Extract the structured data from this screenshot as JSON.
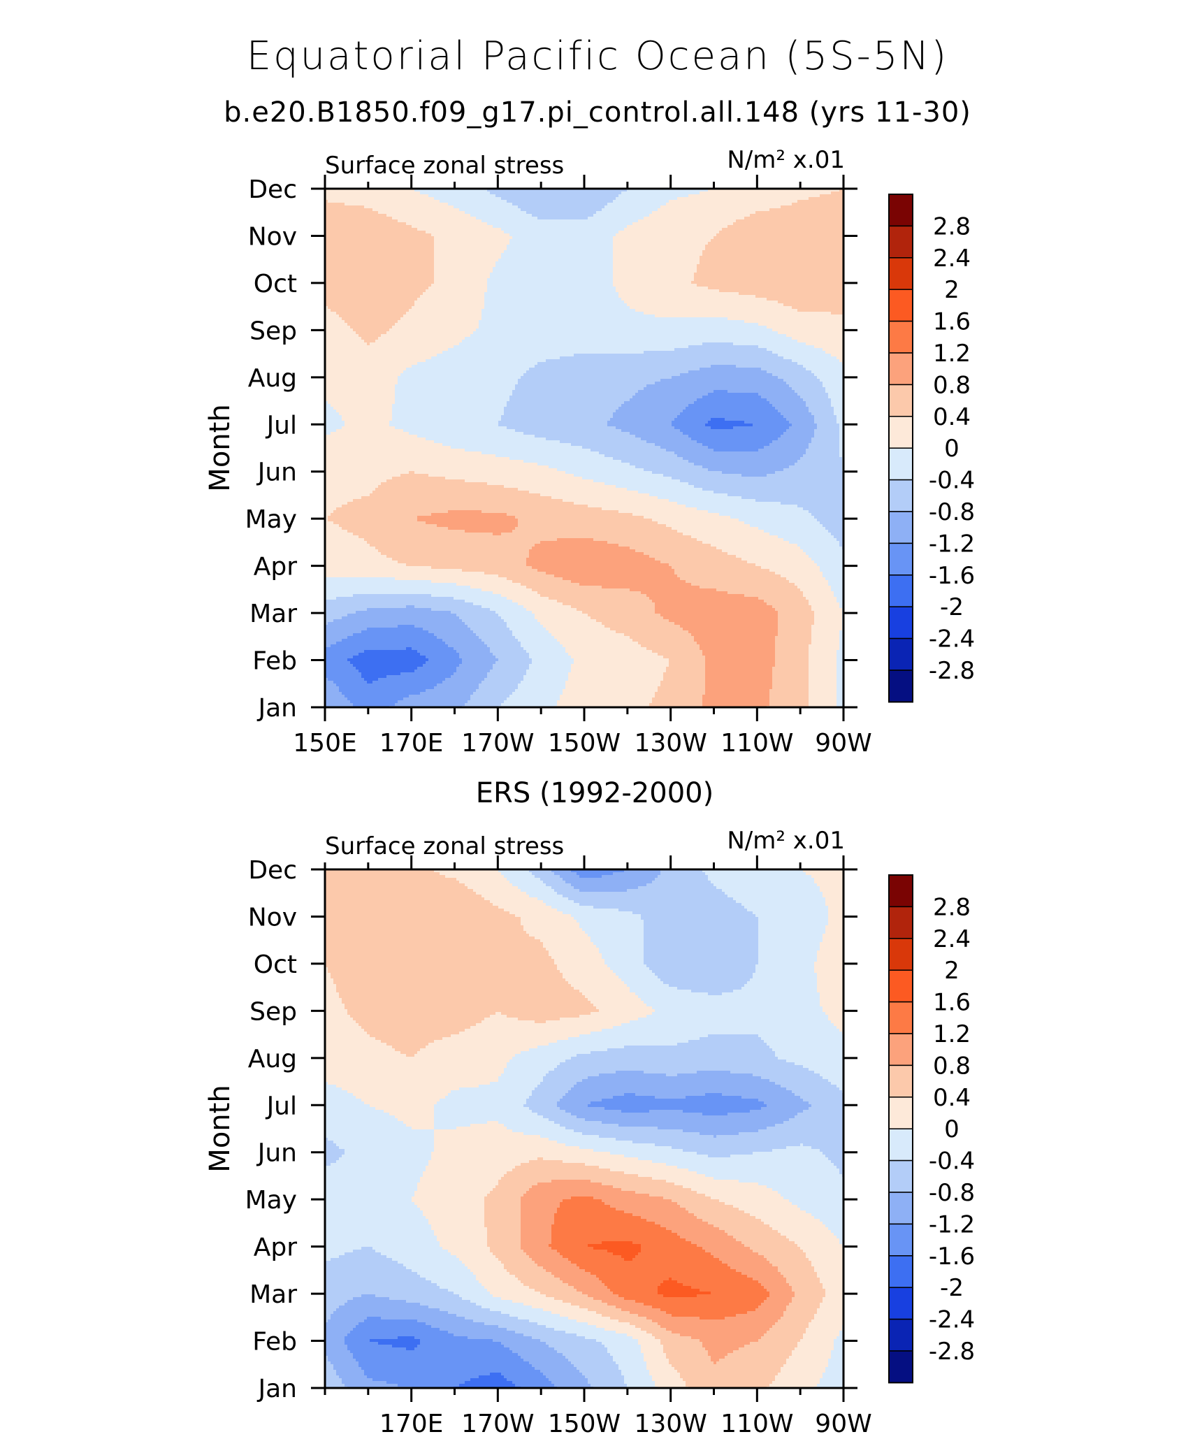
{
  "header": {
    "title": "Equatorial Pacific Ocean (5S-5N)",
    "subtitle": "b.e20.B1850.f09_g17.pi_control.all.148 (yrs 11-30)"
  },
  "colorbar": {
    "labels": [
      "2.8",
      "2.4",
      "2",
      "1.6",
      "1.2",
      "0.8",
      "0.4",
      "0",
      "-0.4",
      "-0.8",
      "-1.2",
      "-1.6",
      "-2",
      "-2.4",
      "-2.8"
    ],
    "colors": [
      "#7a0403",
      "#b1240c",
      "#d9380a",
      "#fc5a22",
      "#fd7a45",
      "#fca27c",
      "#fcc9ab",
      "#fde9d9",
      "#d8eafb",
      "#b3cdf8",
      "#8eb0f5",
      "#6894f5",
      "#3d6ff2",
      "#1840e0",
      "#0a24b4",
      "#050f82"
    ]
  },
  "chart_data": [
    {
      "type": "heatmap",
      "title": "",
      "left_label": "Surface zonal stress",
      "units_label": "N/m² x.01",
      "ylabel": "Month",
      "y_ticks": [
        "Jan",
        "Feb",
        "Mar",
        "Apr",
        "May",
        "Jun",
        "Jul",
        "Aug",
        "Sep",
        "Oct",
        "Nov",
        "Dec"
      ],
      "x_ticks": [
        "150E",
        "170E",
        "170W",
        "150W",
        "130W",
        "110W",
        "90W"
      ],
      "x_range": [
        150,
        270
      ],
      "x_tick_values": [
        150,
        170,
        190,
        210,
        230,
        250,
        270
      ],
      "levels": [
        -2.8,
        -2.4,
        -2,
        -1.6,
        -1.2,
        -0.8,
        -0.4,
        0,
        0.4,
        0.8,
        1.2,
        1.6,
        2,
        2.4,
        2.8
      ],
      "x": [
        150,
        160,
        170,
        180,
        190,
        200,
        210,
        220,
        230,
        240,
        250,
        260,
        270
      ],
      "values": [
        [
          -0.8,
          -1.4,
          -1.0,
          -0.9,
          -0.4,
          -0.1,
          0.2,
          0.3,
          0.5,
          0.9,
          0.9,
          0.5,
          -0.1
        ],
        [
          -1.4,
          -1.8,
          -1.8,
          -1.3,
          -0.8,
          -0.3,
          0.1,
          0.2,
          0.4,
          0.9,
          1.0,
          0.5,
          -0.1
        ],
        [
          -0.6,
          -0.9,
          -1.0,
          -0.8,
          -0.4,
          0.1,
          0.4,
          0.6,
          0.9,
          1.0,
          1.0,
          0.6,
          0.0
        ],
        [
          0.2,
          0.3,
          0.4,
          0.5,
          0.6,
          0.9,
          1.1,
          1.0,
          0.8,
          0.6,
          0.4,
          0.2,
          -0.3
        ],
        [
          0.4,
          0.5,
          0.8,
          0.9,
          0.9,
          0.7,
          0.6,
          0.5,
          0.3,
          0.1,
          -0.1,
          -0.3,
          -0.6
        ],
        [
          0.3,
          0.3,
          0.4,
          0.3,
          0.2,
          0.1,
          -0.1,
          -0.3,
          -0.5,
          -0.8,
          -0.9,
          -0.7,
          -0.4
        ],
        [
          -0.1,
          0.1,
          -0.1,
          -0.3,
          -0.4,
          -0.6,
          -0.7,
          -0.9,
          -1.2,
          -1.7,
          -1.6,
          -1.1,
          -0.3
        ],
        [
          0.1,
          0.2,
          -0.1,
          -0.2,
          -0.3,
          -0.5,
          -0.6,
          -0.7,
          -0.8,
          -1.0,
          -1.0,
          -0.6,
          -0.1
        ],
        [
          0.2,
          0.5,
          0.3,
          0.1,
          -0.1,
          -0.2,
          -0.2,
          -0.1,
          -0.1,
          -0.2,
          -0.1,
          0.2,
          0.3
        ],
        [
          0.6,
          0.7,
          0.5,
          0.3,
          -0.1,
          -0.2,
          -0.2,
          0.1,
          0.3,
          0.5,
          0.6,
          0.7,
          0.6
        ],
        [
          0.7,
          0.7,
          0.5,
          0.3,
          0.1,
          -0.2,
          -0.2,
          0.1,
          0.3,
          0.4,
          0.7,
          0.7,
          0.7
        ],
        [
          0.3,
          0.2,
          0.0,
          -0.2,
          -0.5,
          -0.8,
          -0.8,
          -0.4,
          -0.1,
          0.0,
          0.1,
          0.3,
          0.4
        ]
      ]
    },
    {
      "type": "heatmap",
      "title": "ERS (1992-2000)",
      "left_label": "Surface zonal stress",
      "units_label": "N/m² x.01",
      "ylabel": "Month",
      "y_ticks": [
        "Jan",
        "Feb",
        "Mar",
        "Apr",
        "May",
        "Jun",
        "Jul",
        "Aug",
        "Sep",
        "Oct",
        "Nov",
        "Dec"
      ],
      "x_ticks": [
        "170E",
        "170W",
        "150W",
        "130W",
        "110W",
        "90W"
      ],
      "x_range": [
        150,
        270
      ],
      "x_tick_values": [
        170,
        190,
        210,
        230,
        250,
        270
      ],
      "levels": [
        -2.8,
        -2.4,
        -2,
        -1.6,
        -1.2,
        -0.8,
        -0.4,
        0,
        0.4,
        0.8,
        1.2,
        1.6,
        2,
        2.4,
        2.8
      ],
      "x": [
        150,
        160,
        170,
        180,
        190,
        200,
        210,
        220,
        230,
        240,
        250,
        260,
        270
      ],
      "values": [
        [
          -0.5,
          -1.1,
          -1.2,
          -1.6,
          -1.8,
          -1.4,
          -0.9,
          -0.4,
          0.2,
          0.7,
          0.5,
          0.1,
          -0.2
        ],
        [
          -0.9,
          -1.6,
          -1.7,
          -1.3,
          -1.2,
          -0.8,
          -0.5,
          -0.2,
          0.6,
          0.9,
          0.8,
          0.4,
          -0.1
        ],
        [
          -0.6,
          -0.8,
          -0.6,
          -0.4,
          0.1,
          0.4,
          0.8,
          1.4,
          1.7,
          1.6,
          1.4,
          0.7,
          0.2
        ],
        [
          -0.3,
          -0.4,
          -0.2,
          0.1,
          0.5,
          1.1,
          1.6,
          1.7,
          1.4,
          1.1,
          0.7,
          0.4,
          0.0
        ],
        [
          -0.2,
          -0.1,
          0.0,
          0.2,
          0.5,
          1.1,
          1.3,
          1.0,
          0.8,
          0.4,
          0.2,
          -0.1,
          -0.3
        ],
        [
          -0.5,
          -0.3,
          -0.1,
          0.1,
          0.2,
          0.3,
          0.1,
          -0.1,
          -0.3,
          -0.5,
          -0.4,
          -0.3,
          -0.5
        ],
        [
          -0.2,
          0.0,
          0.1,
          -0.1,
          -0.1,
          -0.6,
          -1.2,
          -1.4,
          -1.3,
          -1.4,
          -1.3,
          -0.9,
          -0.5
        ],
        [
          0.2,
          0.3,
          0.4,
          0.2,
          0.1,
          -0.2,
          -0.5,
          -0.6,
          -0.5,
          -0.6,
          -0.5,
          -0.3,
          -0.1
        ],
        [
          0.3,
          0.5,
          0.6,
          0.6,
          0.4,
          0.6,
          0.5,
          0.2,
          -0.1,
          -0.2,
          -0.3,
          -0.1,
          0.1
        ],
        [
          0.4,
          0.6,
          0.7,
          0.6,
          0.4,
          0.5,
          0.2,
          -0.2,
          -0.7,
          -0.8,
          -0.4,
          -0.1,
          0.2
        ],
        [
          0.6,
          0.7,
          0.5,
          0.8,
          0.5,
          0.3,
          -0.1,
          -0.3,
          -0.6,
          -0.6,
          -0.4,
          -0.2,
          0.1
        ],
        [
          0.5,
          0.6,
          0.5,
          0.3,
          0.0,
          -0.6,
          -1.5,
          -1.2,
          -0.7,
          -0.3,
          -0.1,
          0.0,
          0.1
        ]
      ]
    }
  ]
}
